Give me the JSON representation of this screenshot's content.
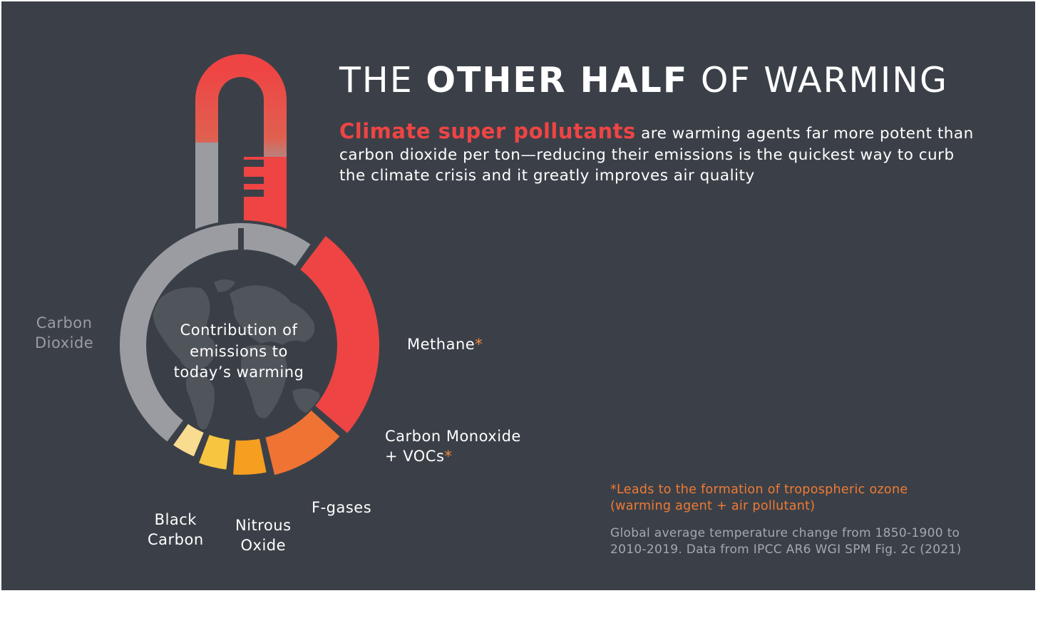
{
  "title": {
    "light_1": "THE",
    "bold": "OTHER HALF",
    "light_2": "OF WARMING"
  },
  "intro": {
    "highlight": "Climate super pollutants",
    "rest": "are warming agents far more potent than carbon dioxide per ton—reducing their emissions is the quickest way to curb the climate crisis and it greatly improves air quality"
  },
  "center_label": [
    "Contribution of",
    "emissions to",
    "today’s warming"
  ],
  "chart_data": {
    "type": "pie",
    "title": "",
    "unit_note": "share of contribution to today's warming",
    "slices": [
      {
        "name": "Carbon Dioxide",
        "label_lines": [
          "Carbon",
          "Dioxide"
        ],
        "value": 50,
        "color": "#9a9ca1",
        "ozone_precursor": false
      },
      {
        "name": "Methane",
        "label_lines": [
          "Methane"
        ],
        "value": 26.5,
        "color": "#ef4444",
        "ozone_precursor": true
      },
      {
        "name": "Carbon Monoxide + VOCs",
        "label_lines": [
          "Carbon Monoxide",
          "+ VOCs"
        ],
        "value": 10,
        "color": "#ef7433",
        "ozone_precursor": true
      },
      {
        "name": "F-gases",
        "label_lines": [
          "F-gases"
        ],
        "value": 5,
        "color": "#f59e20",
        "ozone_precursor": false
      },
      {
        "name": "Nitrous Oxide",
        "label_lines": [
          "Nitrous",
          "Oxide"
        ],
        "value": 4.5,
        "color": "#f7c540",
        "ozone_precursor": false
      },
      {
        "name": "Black Carbon",
        "label_lines": [
          "Black",
          "Carbon"
        ],
        "value": 4,
        "color": "#fadc90",
        "ozone_precursor": false
      }
    ],
    "asterisk": "*",
    "footnote_lines": [
      "*Leads to the formation of tropospheric ozone",
      "(warming agent + air pollutant)"
    ],
    "source_lines": [
      "Global average temperature change from 1850-1900 to",
      "2010-2019. Data from IPCC AR6 WGI SPM Fig. 2c (2021)"
    ]
  },
  "colors": {
    "background": "#3b4048",
    "accent_red": "#ef4444",
    "footnote_orange": "#f07a33",
    "co2_gray": "#9a9ca1",
    "muted_text": "#a4a8ae"
  }
}
